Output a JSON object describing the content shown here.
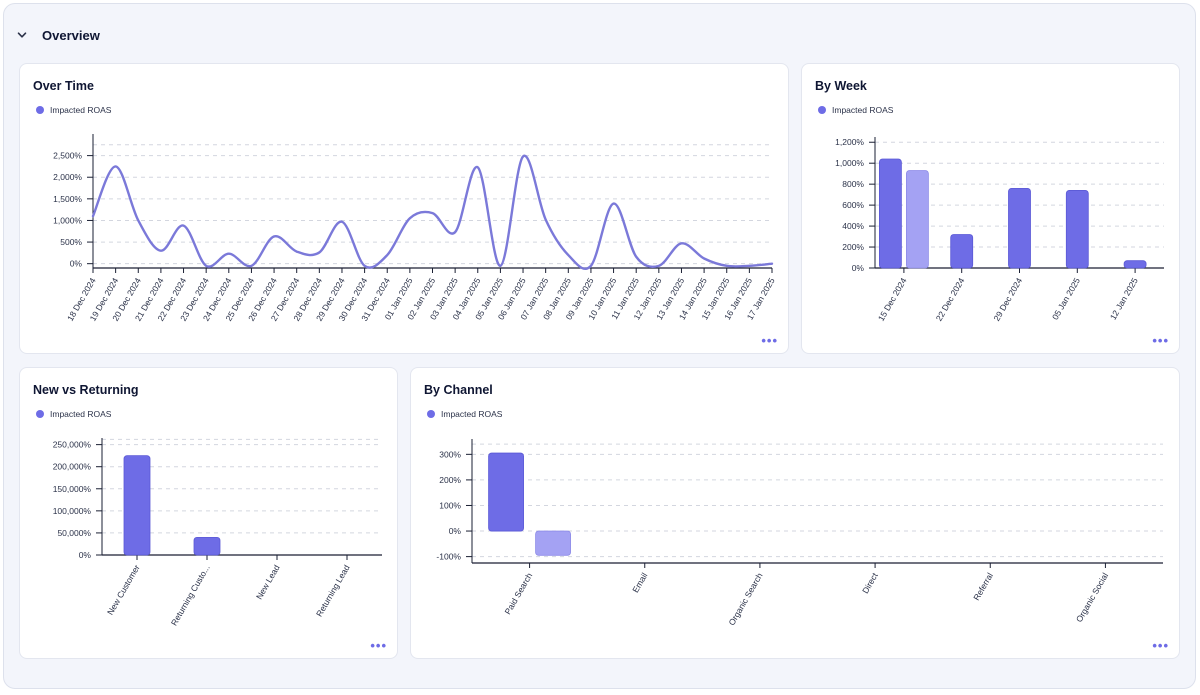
{
  "section": {
    "title": "Overview"
  },
  "colors": {
    "accent": "#6e6ce6",
    "accent_light": "#a4a2f3",
    "grid": "#d3d6df",
    "axis": "#1a1f33"
  },
  "cards": {
    "over_time": {
      "title": "Over Time",
      "legend": "Impacted ROAS",
      "more": "•••"
    },
    "by_week": {
      "title": "By Week",
      "legend": "Impacted ROAS",
      "more": "•••"
    },
    "new_vs_returning": {
      "title": "New vs Returning",
      "legend": "Impacted ROAS",
      "more": "•••"
    },
    "by_channel": {
      "title": "By Channel",
      "legend": "Impacted ROAS",
      "more": "•••"
    }
  },
  "chart_data": [
    {
      "id": "over_time",
      "type": "line",
      "title": "Over Time",
      "series": [
        {
          "name": "Impacted ROAS",
          "values": [
            1100,
            2250,
            1000,
            300,
            880,
            -50,
            230,
            -50,
            630,
            280,
            260,
            970,
            -50,
            200,
            1050,
            1170,
            730,
            2230,
            -50,
            2480,
            1020,
            200,
            -50,
            1390,
            160,
            -50,
            470,
            120,
            -50,
            -50,
            0
          ]
        }
      ],
      "categories": [
        "18 Dec 2024",
        "19 Dec 2024",
        "20 Dec 2024",
        "21 Dec 2024",
        "22 Dec 2024",
        "23 Dec 2024",
        "24 Dec 2024",
        "25 Dec 2024",
        "26 Dec 2024",
        "27 Dec 2024",
        "28 Dec 2024",
        "29 Dec 2024",
        "30 Dec 2024",
        "31 Dec 2024",
        "01 Jan 2025",
        "02 Jan 2025",
        "03 Jan 2025",
        "04 Jan 2025",
        "05 Jan 2025",
        "06 Jan 2025",
        "07 Jan 2025",
        "08 Jan 2025",
        "09 Jan 2025",
        "10 Jan 2025",
        "11 Jan 2025",
        "12 Jan 2025",
        "13 Jan 2025",
        "14 Jan 2025",
        "15 Jan 2025",
        "16 Jan 2025",
        "17 Jan 2025"
      ],
      "yticks": [
        0,
        500,
        1000,
        1500,
        2000,
        2500
      ],
      "ytick_labels": [
        "0%",
        "500%",
        "1,000%",
        "1,500%",
        "2,000%",
        "2,500%"
      ],
      "ylim": [
        -100,
        3000
      ],
      "grid": true,
      "legend": "top-left"
    },
    {
      "id": "by_week",
      "type": "bar",
      "title": "By Week",
      "categories": [
        "15 Dec 2024",
        "22 Dec 2024",
        "29 Dec 2024",
        "05 Jan 2025",
        "12 Jan 2025"
      ],
      "series": [
        {
          "name": "Impacted ROAS",
          "values": [
            1040,
            320,
            760,
            740,
            70
          ]
        },
        {
          "name": "",
          "values": [
            930,
            null,
            null,
            null,
            null
          ]
        }
      ],
      "yticks": [
        0,
        200,
        400,
        600,
        800,
        1000,
        1200
      ],
      "ytick_labels": [
        "0%",
        "200%",
        "400%",
        "600%",
        "800%",
        "1,000%",
        "1,200%"
      ],
      "ylim": [
        0,
        1250
      ],
      "grid": true,
      "legend": "top-left"
    },
    {
      "id": "new_vs_returning",
      "type": "bar",
      "title": "New vs Returning",
      "categories": [
        "New Customer",
        "Returning Custo...",
        "New Lead",
        "Returning Lead"
      ],
      "series": [
        {
          "name": "Impacted ROAS",
          "values": [
            225000,
            40000,
            0,
            0
          ]
        }
      ],
      "yticks": [
        0,
        50000,
        100000,
        150000,
        200000,
        250000
      ],
      "ytick_labels": [
        "0%",
        "50,000%",
        "100,000%",
        "150,000%",
        "200,000%",
        "250,000%"
      ],
      "ylim": [
        0,
        265000
      ],
      "grid": true,
      "legend": "top-left"
    },
    {
      "id": "by_channel",
      "type": "bar",
      "title": "By Channel",
      "categories": [
        "Paid Search",
        "Email",
        "Organic Search",
        "Direct",
        "Referral",
        "Organic Social"
      ],
      "series": [
        {
          "name": "Impacted ROAS",
          "values": [
            305,
            0,
            0,
            0,
            0,
            0
          ]
        },
        {
          "name": "",
          "values": [
            -95,
            null,
            null,
            null,
            null,
            null
          ]
        }
      ],
      "yticks": [
        -100,
        0,
        100,
        200,
        300
      ],
      "ytick_labels": [
        "-100%",
        "0%",
        "100%",
        "200%",
        "300%"
      ],
      "ylim": [
        -125,
        360
      ],
      "grid": true,
      "legend": "top-left"
    }
  ]
}
